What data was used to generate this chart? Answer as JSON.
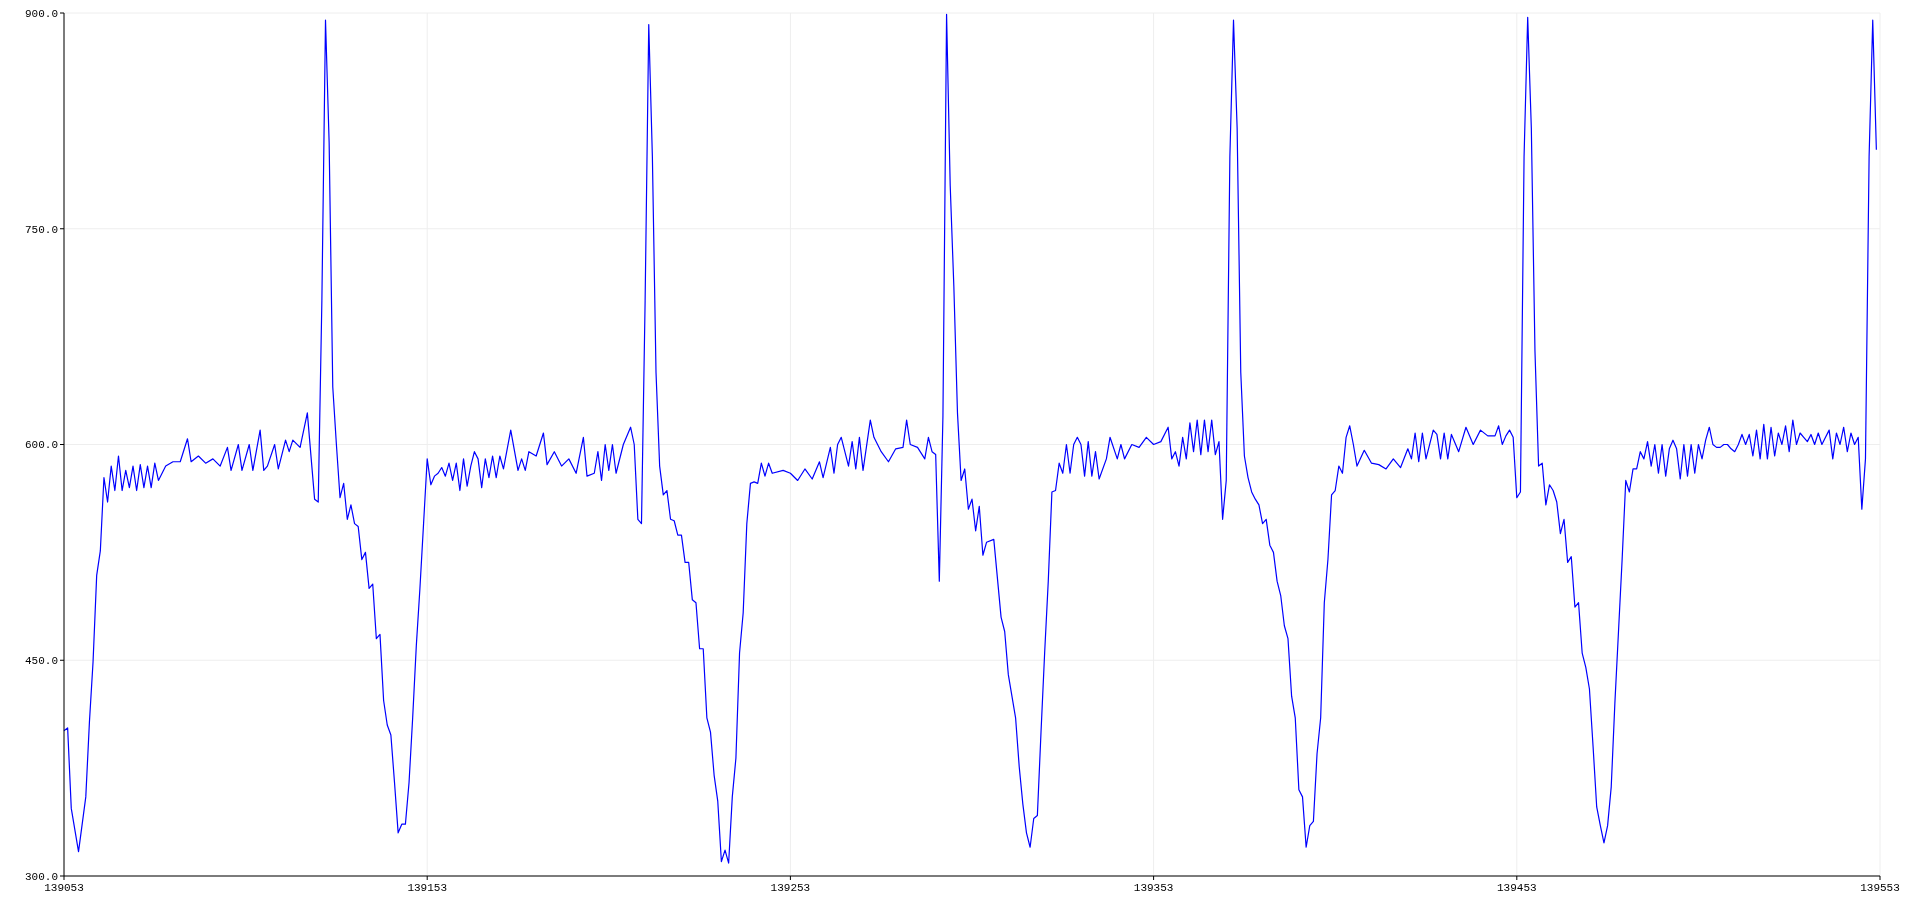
{
  "chart_data": {
    "type": "line",
    "xlim": [
      139053,
      139553
    ],
    "xticks": [
      139053,
      139153,
      139253,
      139353,
      139453,
      139553
    ],
    "ylim": [
      300,
      900
    ],
    "yticks": [
      {
        "value": 300,
        "label": "300.0"
      },
      {
        "value": 450,
        "label": "450.0"
      },
      {
        "value": 600,
        "label": "600.0"
      },
      {
        "value": 750,
        "label": "750.0"
      },
      {
        "value": 900,
        "label": "900.0"
      }
    ],
    "grid": true,
    "marker": "none",
    "line_style": "solid",
    "series": [
      {
        "color": "#0000ff",
        "x": [
          139053,
          139054,
          139055,
          139057,
          139059,
          139060,
          139061,
          139062,
          139063,
          139064,
          139065,
          139066,
          139067,
          139068,
          139069,
          139070,
          139071,
          139072,
          139073,
          139074,
          139075,
          139076,
          139077,
          139078,
          139079,
          139081,
          139083,
          139085,
          139087,
          139088,
          139090,
          139092,
          139094,
          139096,
          139098,
          139099,
          139101,
          139102,
          139104,
          139105,
          139107,
          139108,
          139109,
          139111,
          139112,
          139114,
          139115,
          139116,
          139118,
          139120,
          139122,
          139123,
          139124,
          139125,
          139126,
          139127,
          139128,
          139129,
          139130,
          139131,
          139132,
          139133,
          139134,
          139135,
          139136,
          139137,
          139138,
          139139,
          139140,
          139141,
          139142,
          139143,
          139144,
          139145,
          139146,
          139147,
          139148,
          139149,
          139150,
          139151,
          139152,
          139153,
          139154,
          139155,
          139156,
          139157,
          139158,
          139159,
          139160,
          139161,
          139162,
          139163,
          139164,
          139165,
          139166,
          139167,
          139168,
          139169,
          139170,
          139171,
          139172,
          139173,
          139174,
          139176,
          139178,
          139179,
          139180,
          139181,
          139183,
          139185,
          139186,
          139188,
          139190,
          139192,
          139194,
          139196,
          139197,
          139199,
          139200,
          139201,
          139202,
          139203,
          139204,
          139205,
          139207,
          139209,
          139210,
          139211,
          139212,
          139213,
          139214,
          139215,
          139216,
          139217,
          139218,
          139219,
          139220,
          139221,
          139222,
          139223,
          139224,
          139225,
          139226,
          139227,
          139228,
          139229,
          139230,
          139231,
          139232,
          139233,
          139234,
          139235,
          139236,
          139237,
          139238,
          139239,
          139240,
          139241,
          139242,
          139243,
          139244,
          139245,
          139246,
          139247,
          139248,
          139251,
          139253,
          139255,
          139257,
          139259,
          139261,
          139262,
          139264,
          139265,
          139266,
          139267,
          139269,
          139270,
          139271,
          139272,
          139273,
          139275,
          139276,
          139278,
          139280,
          139282,
          139284,
          139285,
          139286,
          139288,
          139290,
          139291,
          139292,
          139293,
          139294,
          139295,
          139296,
          139297,
          139298,
          139299,
          139300,
          139301,
          139302,
          139303,
          139304,
          139305,
          139306,
          139307,
          139309,
          139311,
          139312,
          139313,
          139315,
          139316,
          139317,
          139318,
          139319,
          139320,
          139321,
          139322,
          139323,
          139324,
          139325,
          139326,
          139327,
          139328,
          139329,
          139330,
          139331,
          139332,
          139333,
          139334,
          139335,
          139336,
          139337,
          139338,
          139340,
          139341,
          139343,
          139344,
          139345,
          139347,
          139349,
          139351,
          139353,
          139355,
          139357,
          139358,
          139359,
          139360,
          139361,
          139362,
          139363,
          139364,
          139365,
          139366,
          139367,
          139368,
          139369,
          139370,
          139371,
          139372,
          139373,
          139374,
          139375,
          139376,
          139377,
          139378,
          139379,
          139380,
          139381,
          139382,
          139383,
          139384,
          139385,
          139386,
          139387,
          139388,
          139389,
          139390,
          139391,
          139392,
          139393,
          139394,
          139395,
          139396,
          139397,
          139398,
          139399,
          139400,
          139401,
          139402,
          139403,
          139404,
          139405,
          139406,
          139407,
          139408,
          139409,
          139411,
          139413,
          139415,
          139417,
          139419,
          139421,
          139423,
          139424,
          139425,
          139426,
          139427,
          139428,
          139430,
          139431,
          139432,
          139433,
          139434,
          139435,
          139437,
          139439,
          139441,
          139443,
          139445,
          139447,
          139448,
          139449,
          139450,
          139451,
          139452,
          139453,
          139454,
          139455,
          139456,
          139457,
          139458,
          139459,
          139460,
          139461,
          139462,
          139463,
          139464,
          139465,
          139466,
          139467,
          139468,
          139469,
          139470,
          139471,
          139472,
          139473,
          139474,
          139475,
          139476,
          139477,
          139478,
          139479,
          139480,
          139481,
          139482,
          139483,
          139484,
          139485,
          139486,
          139487,
          139488,
          139489,
          139490,
          139491,
          139492,
          139493,
          139494,
          139495,
          139496,
          139497,
          139498,
          139499,
          139500,
          139501,
          139502,
          139503,
          139504,
          139505,
          139506,
          139507,
          139508,
          139509,
          139510,
          139511,
          139512,
          139513,
          139514,
          139515,
          139516,
          139517,
          139518,
          139519,
          139520,
          139521,
          139522,
          139523,
          139524,
          139525,
          139526,
          139527,
          139528,
          139529,
          139530,
          139531,
          139532,
          139533,
          139534,
          139535,
          139536,
          139537,
          139538,
          139539,
          139540,
          139541,
          139542,
          139543,
          139544,
          139545,
          139546,
          139547,
          139548,
          139549,
          139550,
          139551,
          139552
        ],
        "values": [
          401,
          403,
          347,
          317,
          355,
          407,
          449,
          509,
          526,
          577,
          560,
          585,
          568,
          592,
          568,
          582,
          570,
          585,
          568,
          586,
          570,
          585,
          570,
          587,
          575,
          585,
          588,
          588,
          604,
          588,
          592,
          587,
          590,
          585,
          598,
          582,
          600,
          582,
          600,
          582,
          610,
          582,
          585,
          600,
          583,
          603,
          595,
          603,
          598,
          622,
          562,
          560,
          700,
          895,
          810,
          640,
          600,
          563,
          573,
          548,
          558,
          545,
          543,
          520,
          525,
          500,
          503,
          465,
          468,
          422,
          405,
          398,
          365,
          330,
          336,
          336,
          365,
          410,
          460,
          500,
          545,
          590,
          572,
          578,
          580,
          584,
          578,
          587,
          575,
          587,
          568,
          590,
          571,
          585,
          595,
          590,
          570,
          590,
          577,
          592,
          577,
          592,
          583,
          610,
          582,
          590,
          582,
          595,
          592,
          608,
          586,
          595,
          585,
          590,
          580,
          605,
          578,
          580,
          595,
          575,
          600,
          582,
          600,
          580,
          600,
          612,
          600,
          548,
          545,
          700,
          892,
          800,
          650,
          585,
          565,
          568,
          548,
          547,
          537,
          537,
          518,
          518,
          492,
          490,
          458,
          458,
          410,
          400,
          370,
          352,
          310,
          318,
          309,
          355,
          382,
          455,
          483,
          545,
          573,
          574,
          573,
          587,
          578,
          587,
          580,
          582,
          580,
          575,
          583,
          576,
          588,
          577,
          598,
          580,
          600,
          605,
          585,
          602,
          583,
          605,
          582,
          617,
          605,
          595,
          588,
          597,
          598,
          617,
          600,
          598,
          590,
          605,
          595,
          593,
          505,
          620,
          899,
          780,
          710,
          622,
          575,
          583,
          555,
          562,
          540,
          557,
          523,
          532,
          534,
          480,
          470,
          440,
          410,
          376,
          350,
          330,
          320,
          340,
          342,
          400,
          455,
          505,
          567,
          568,
          587,
          580,
          600,
          580,
          600,
          605,
          600,
          578,
          602,
          578,
          595,
          576,
          590,
          605,
          590,
          600,
          590,
          600,
          598,
          605,
          600,
          602,
          612,
          590,
          595,
          585,
          605,
          590,
          615,
          595,
          617,
          593,
          617,
          595,
          617,
          593,
          602,
          548,
          575,
          800,
          895,
          820,
          650,
          592,
          577,
          567,
          562,
          558,
          545,
          548,
          530,
          525,
          505,
          495,
          474,
          465,
          425,
          410,
          360,
          355,
          320,
          335,
          338,
          385,
          410,
          490,
          520,
          565,
          568,
          585,
          580,
          605,
          613,
          600,
          585,
          596,
          587,
          586,
          583,
          590,
          584,
          597,
          590,
          608,
          588,
          608,
          590,
          610,
          607,
          590,
          608,
          590,
          607,
          595,
          612,
          600,
          610,
          606,
          606,
          613,
          600,
          606,
          610,
          605,
          563,
          567,
          800,
          897,
          820,
          665,
          585,
          587,
          558,
          572,
          568,
          560,
          538,
          548,
          518,
          522,
          487,
          490,
          455,
          445,
          430,
          390,
          348,
          335,
          323,
          335,
          362,
          420,
          470,
          520,
          575,
          567,
          583,
          583,
          595,
          590,
          602,
          585,
          600,
          580,
          600,
          578,
          597,
          603,
          597,
          576,
          600,
          578,
          600,
          580,
          600,
          590,
          603,
          612,
          600,
          598,
          598,
          600,
          600,
          597,
          595,
          600,
          607,
          600,
          607,
          592,
          610,
          590,
          614,
          590,
          612,
          592,
          608,
          600,
          613,
          595,
          617,
          600,
          608,
          605,
          602,
          607,
          600,
          608,
          600,
          605,
          610,
          590,
          608,
          600,
          612,
          595,
          608,
          600,
          605,
          555,
          590,
          800,
          895,
          805
        ]
      }
    ]
  }
}
